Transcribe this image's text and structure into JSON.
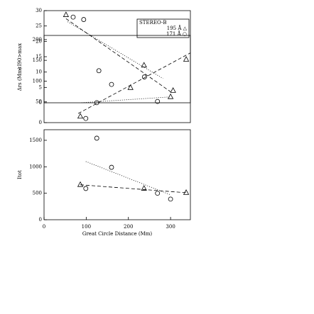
{
  "chart_data": [
    {
      "type": "scatter",
      "y_label": "<I90>max",
      "xlim": [
        0,
        347
      ],
      "ylim": [
        0,
        30
      ],
      "yticks": [
        0,
        5,
        10,
        15,
        20,
        25,
        30
      ],
      "legend": {
        "title": "STEREO-B",
        "position": "upper right"
      },
      "series": [
        {
          "name": "195 Å △",
          "marker": "triangle",
          "color": "#000000",
          "x": [
            52
          ],
          "values": [
            28.6
          ],
          "fit": {
            "style": "dashed",
            "x": [
              52,
              300
            ],
            "values": [
              27.4,
              3.6
            ]
          }
        },
        {
          "name": "171 Å ○",
          "marker": "circle",
          "color": "#000000",
          "x": [
            69,
            94
          ],
          "values": [
            27.9,
            27.1
          ],
          "fit": {
            "style": "dotted",
            "x": [
              56,
              282
            ],
            "values": [
              26.4,
              7.9
            ]
          }
        }
      ]
    },
    {
      "type": "scatter",
      "y_label": "Δrs (Mm)",
      "xlim": [
        0,
        347
      ],
      "ylim": [
        0,
        210
      ],
      "yticks": [
        0,
        50,
        100,
        150,
        200
      ],
      "series": [
        {
          "marker": "triangle",
          "color": "#000000",
          "x": [
            86,
            205,
            237,
            300,
            306,
            337
          ],
          "values": [
            15,
            84,
            138,
            62,
            77,
            152
          ],
          "fit": {
            "style": "dashed",
            "x": [
              81,
              347
            ],
            "values": [
              22,
              168
            ]
          }
        },
        {
          "marker": "circle",
          "color": "#000000",
          "x": [
            99,
            125,
            130,
            160,
            238,
            269
          ],
          "values": [
            10,
            48,
            125,
            92,
            110,
            51
          ],
          "fit": {
            "style": "dotted",
            "x": [
              89,
              300
            ],
            "values": [
              48,
              62
            ]
          }
        }
      ]
    },
    {
      "type": "scatter",
      "y_label": "Itot",
      "x_label": "Great Circle Distance (Mm)",
      "xlim": [
        0,
        347
      ],
      "xticks": [
        0,
        100,
        200,
        300
      ],
      "ylim": [
        0,
        1700
      ],
      "yticks": [
        0,
        500,
        1000,
        1500
      ],
      "series": [
        {
          "marker": "triangle",
          "color": "#000000",
          "x": [
            86,
            237,
            337
          ],
          "values": [
            660,
            590,
            510
          ],
          "fit": {
            "style": "dashed",
            "x": [
              86,
              337
            ],
            "values": [
              660,
              510
            ]
          }
        },
        {
          "marker": "circle",
          "color": "#000000",
          "x": [
            99,
            125,
            160,
            269,
            300
          ],
          "values": [
            590,
            1540,
            990,
            500,
            390
          ],
          "fit": {
            "style": "dotted",
            "x": [
              99,
              300
            ],
            "values": [
              1100,
              470
            ]
          }
        }
      ]
    }
  ]
}
